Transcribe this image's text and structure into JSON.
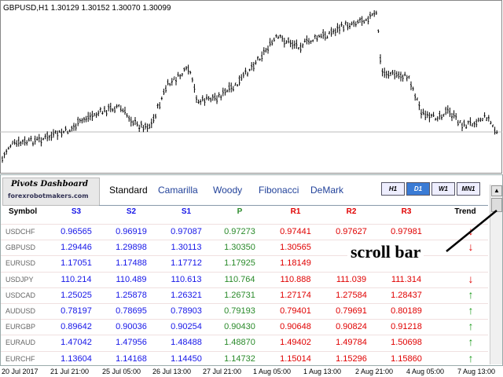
{
  "chart": {
    "header": "GBPUSD,H1  1.30129 1.30152 1.30070 1.30099",
    "time_labels": [
      "20 Jul 2017",
      "21 Jul 21:00",
      "25 Jul 05:00",
      "26 Jul 13:00",
      "27 Jul 21:00",
      "1 Aug 05:00",
      "1 Aug 13:00",
      "2 Aug 21:00",
      "4 Aug 05:00",
      "7 Aug 13:00"
    ]
  },
  "dashboard": {
    "logo_title": "Pivots Dashboard",
    "logo_url": "forexrobotmakers.com",
    "tabs": [
      "Standard",
      "Camarilla",
      "Woody",
      "Fibonacci",
      "DeMark"
    ],
    "timeframes": [
      "H1",
      "D1",
      "W1",
      "MN1"
    ],
    "columns": [
      "Symbol",
      "S3",
      "S2",
      "S1",
      "P",
      "R1",
      "R2",
      "R3",
      "Trend"
    ],
    "rows": [
      [
        "USDCHF",
        "0.96565",
        "0.96919",
        "0.97087",
        "0.97273",
        "0.97441",
        "0.97627",
        "0.97981",
        "↓"
      ],
      [
        "GBPUSD",
        "1.29446",
        "1.29898",
        "1.30113",
        "1.30350",
        "1.30565",
        null,
        null,
        "↓"
      ],
      [
        "EURUSD",
        "1.17051",
        "1.17488",
        "1.17712",
        "1.17925",
        "1.18149",
        null,
        null,
        null
      ],
      [
        "USDJPY",
        "110.214",
        "110.489",
        "110.613",
        "110.764",
        "110.888",
        "111.039",
        "111.314",
        "↓"
      ],
      [
        "USDCAD",
        "1.25025",
        "1.25878",
        "1.26321",
        "1.26731",
        "1.27174",
        "1.27584",
        "1.28437",
        "↑"
      ],
      [
        "AUDUSD",
        "0.78197",
        "0.78695",
        "0.78903",
        "0.79193",
        "0.79401",
        "0.79691",
        "0.80189",
        "↑"
      ],
      [
        "EURGBP",
        "0.89642",
        "0.90036",
        "0.90254",
        "0.90430",
        "0.90648",
        "0.90824",
        "0.91218",
        "↑"
      ],
      [
        "EURAUD",
        "1.47042",
        "1.47956",
        "1.48488",
        "1.48870",
        "1.49402",
        "1.49784",
        "1.50698",
        "↑"
      ],
      [
        "EURCHF",
        "1.13604",
        "1.14168",
        "1.14450",
        "1.14732",
        "1.15014",
        "1.15296",
        "1.15860",
        "↑"
      ]
    ]
  },
  "annotation": "scroll bar"
}
